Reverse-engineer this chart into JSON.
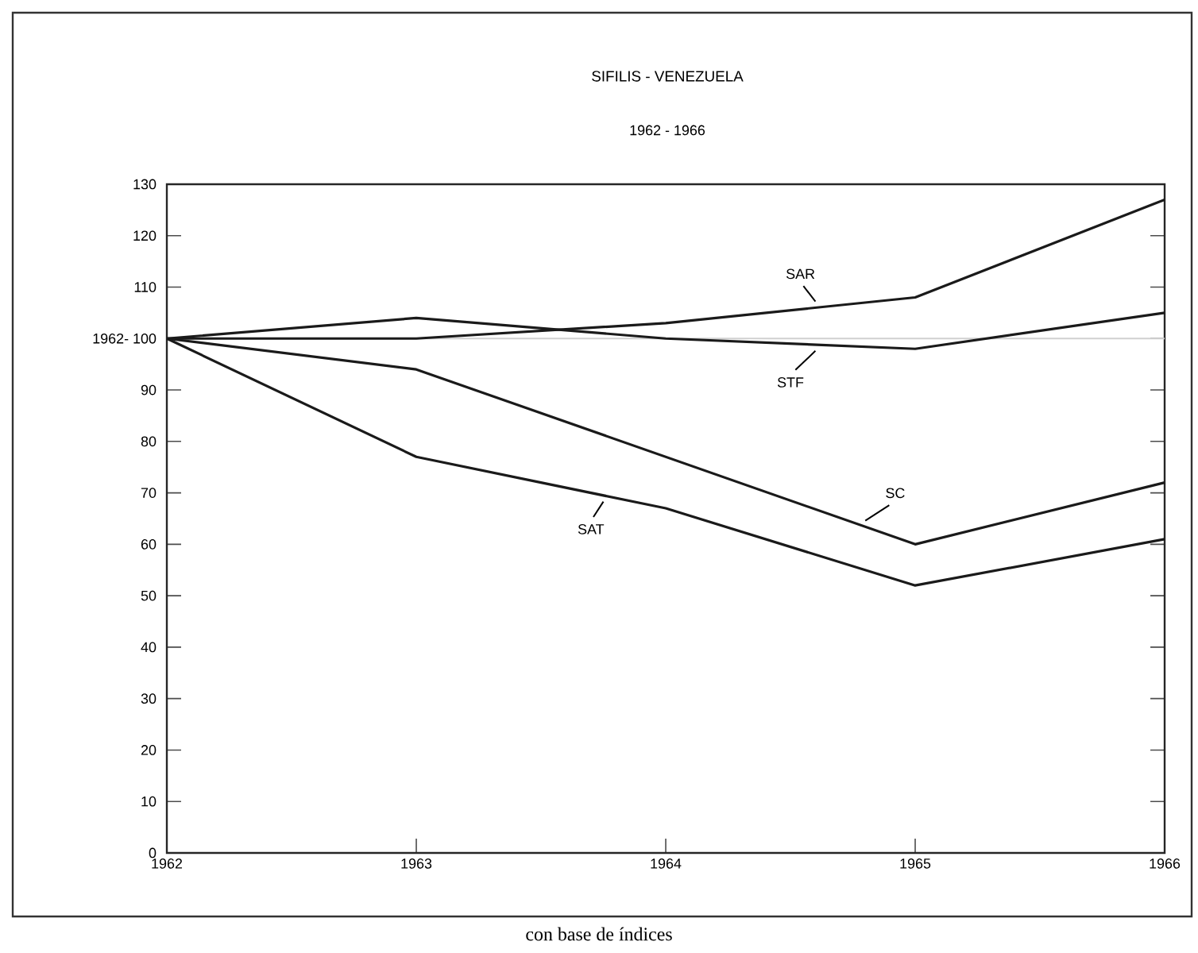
{
  "chart_data": {
    "type": "line",
    "title": "SIFILIS - VENEZUELA",
    "subtitle": "1962 - 1966",
    "x": [
      1962,
      1963,
      1964,
      1965,
      1966
    ],
    "series": [
      {
        "name": "SAR",
        "color": "#1a1a1a",
        "values": [
          100,
          100,
          103,
          108,
          127
        ]
      },
      {
        "name": "STF",
        "color": "#1a1a1a",
        "values": [
          100,
          104,
          100,
          98,
          105
        ]
      },
      {
        "name": "SC",
        "color": "#1a1a1a",
        "values": [
          100,
          94,
          77,
          60,
          72
        ]
      },
      {
        "name": "SAT",
        "color": "#1a1a1a",
        "values": [
          100,
          77,
          67,
          52,
          61
        ]
      }
    ],
    "xlim": [
      1962,
      1966
    ],
    "xticks": [
      1962,
      1963,
      1964,
      1965,
      1966
    ],
    "ylim": [
      0,
      130
    ],
    "yticks": [
      0,
      10,
      20,
      30,
      40,
      50,
      60,
      70,
      80,
      90,
      {
        "value": 100,
        "label": "1962- 100"
      },
      110,
      120,
      130
    ],
    "ref_lines": [
      {
        "axis": "y",
        "value": 100,
        "color": "#d0d0d0"
      }
    ],
    "grid": false,
    "marker": "none",
    "line_style": "solid",
    "annotations": [
      "con base de índices"
    ]
  }
}
